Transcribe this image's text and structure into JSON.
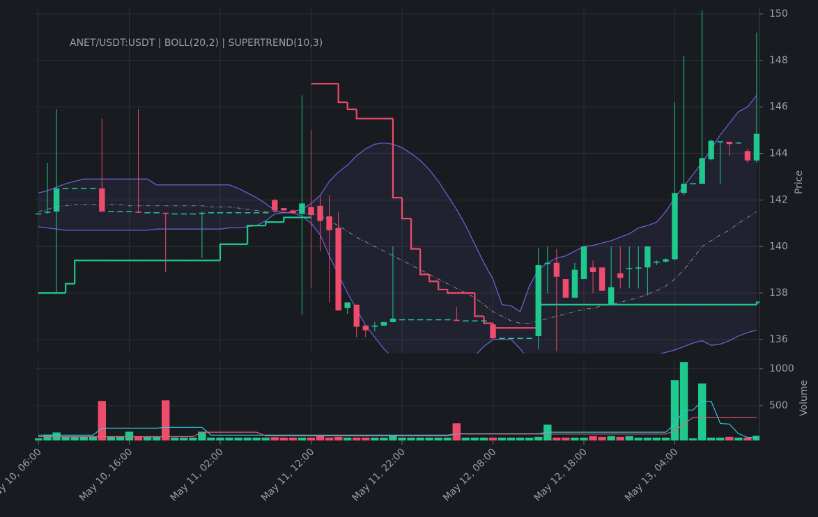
{
  "chart_data": {
    "type": "candlestick",
    "title": "ANET/USDT:USDT | BOLL(20,2) | SUPERTREND(10,3)",
    "ylabel": "Price",
    "volume_label": "Volume",
    "categories": [
      "May 10, 06:00",
      null,
      null,
      null,
      null,
      null,
      null,
      null,
      null,
      null,
      "May 10, 16:00",
      null,
      null,
      null,
      null,
      null,
      null,
      null,
      null,
      null,
      "May 11, 02:00",
      null,
      null,
      null,
      null,
      null,
      null,
      null,
      null,
      null,
      "May 11, 12:00",
      null,
      null,
      null,
      null,
      null,
      null,
      null,
      null,
      null,
      "May 11, 22:00",
      null,
      null,
      null,
      null,
      null,
      null,
      null,
      null,
      null,
      "May 12, 08:00",
      null,
      null,
      null,
      null,
      null,
      null,
      null,
      null,
      null,
      "May 12, 18:00",
      null,
      null,
      null,
      null,
      null,
      null,
      null,
      null,
      null,
      "May 13, 04:00",
      null,
      null,
      null,
      null,
      null,
      null,
      null,
      null,
      null
    ],
    "open": [
      141.4,
      141.45,
      141.5,
      142.5,
      142.5,
      142.5,
      142.5,
      142.5,
      141.5,
      141.5,
      141.5,
      141.5,
      141.45,
      141.45,
      141.45,
      141.4,
      141.4,
      141.4,
      141.4,
      141.45,
      141.45,
      141.45,
      141.45,
      141.45,
      141.45,
      141.45,
      142.0,
      141.65,
      141.55,
      141.4,
      141.7,
      141.75,
      141.3,
      140.8,
      137.35,
      137.5,
      136.6,
      136.55,
      136.6,
      136.75,
      136.85,
      136.85,
      136.85,
      136.85,
      136.85,
      136.85,
      136.85,
      136.8,
      136.8,
      136.8,
      136.65,
      136.05,
      136.05,
      136.05,
      136.05,
      136.15,
      139.25,
      139.3,
      138.6,
      137.8,
      138.6,
      139.1,
      139.1,
      137.5,
      138.85,
      139.05,
      139.05,
      139.1,
      139.3,
      139.35,
      139.45,
      142.3,
      142.7,
      142.7,
      143.75,
      144.5,
      144.5,
      144.45,
      144.1,
      143.7
    ],
    "high": [
      141.4,
      143.6,
      145.9,
      142.5,
      142.5,
      142.5,
      142.5,
      145.5,
      141.5,
      141.5,
      141.5,
      145.9,
      141.45,
      141.45,
      141.45,
      141.4,
      141.4,
      141.4,
      141.5,
      141.45,
      141.45,
      141.45,
      141.45,
      141.45,
      141.45,
      141.45,
      142.05,
      141.65,
      141.6,
      146.5,
      145.0,
      142.2,
      142.2,
      141.5,
      137.6,
      137.5,
      136.6,
      136.75,
      136.75,
      140.0,
      136.85,
      136.85,
      136.85,
      136.85,
      136.85,
      136.85,
      137.4,
      136.8,
      136.8,
      136.8,
      136.65,
      136.05,
      136.05,
      136.05,
      136.05,
      139.95,
      140.0,
      139.9,
      138.6,
      139.3,
      140.0,
      139.4,
      139.1,
      140.0,
      140.0,
      140.0,
      140.0,
      140.0,
      139.4,
      139.5,
      146.2,
      148.2,
      142.7,
      150.15,
      144.6,
      144.5,
      144.5,
      144.5,
      144.2,
      149.2
    ],
    "low": [
      141.4,
      141.4,
      138.0,
      142.5,
      142.5,
      142.5,
      142.5,
      141.5,
      141.5,
      141.5,
      141.5,
      141.45,
      141.45,
      141.45,
      138.9,
      141.4,
      141.4,
      141.4,
      139.5,
      141.45,
      141.45,
      141.45,
      141.45,
      141.45,
      141.45,
      141.45,
      141.5,
      141.5,
      141.4,
      137.05,
      138.2,
      139.8,
      137.6,
      137.25,
      137.1,
      136.1,
      136.1,
      136.35,
      136.6,
      136.75,
      136.85,
      136.85,
      136.85,
      136.85,
      136.85,
      136.85,
      136.8,
      136.8,
      136.8,
      136.8,
      136.05,
      136.05,
      136.05,
      136.05,
      136.05,
      135.6,
      138.0,
      135.5,
      137.8,
      137.8,
      138.6,
      138.0,
      138.1,
      137.5,
      138.2,
      138.2,
      138.2,
      137.9,
      139.2,
      139.3,
      139.4,
      142.2,
      142.7,
      142.7,
      143.7,
      142.7,
      143.9,
      144.4,
      143.6,
      143.6
    ],
    "close": [
      141.4,
      141.5,
      142.5,
      142.5,
      142.5,
      142.5,
      142.5,
      141.5,
      141.5,
      141.5,
      141.5,
      141.45,
      141.45,
      141.45,
      141.4,
      141.4,
      141.4,
      141.4,
      141.45,
      141.45,
      141.45,
      141.45,
      141.45,
      141.45,
      141.45,
      141.45,
      141.55,
      141.55,
      141.45,
      141.85,
      141.35,
      141.1,
      140.7,
      137.25,
      137.6,
      136.55,
      136.4,
      136.6,
      136.75,
      136.9,
      136.85,
      136.85,
      136.85,
      136.85,
      136.85,
      136.85,
      136.8,
      136.8,
      136.8,
      136.8,
      136.05,
      136.05,
      136.05,
      136.05,
      136.05,
      139.2,
      139.3,
      138.7,
      137.8,
      139.0,
      140.0,
      138.9,
      138.1,
      138.25,
      138.65,
      139.05,
      139.1,
      140.0,
      139.35,
      139.45,
      142.3,
      142.7,
      142.7,
      143.8,
      144.55,
      144.5,
      144.4,
      144.45,
      143.7,
      144.85
    ],
    "volume": [
      60,
      110,
      140,
      80,
      80,
      80,
      80,
      566,
      80,
      80,
      150,
      80,
      80,
      80,
      575,
      70,
      70,
      70,
      150,
      70,
      70,
      70,
      70,
      70,
      70,
      70,
      75,
      70,
      70,
      70,
      70,
      100,
      70,
      80,
      70,
      70,
      70,
      70,
      70,
      90,
      70,
      70,
      70,
      70,
      70,
      70,
      264,
      70,
      70,
      70,
      70,
      70,
      70,
      70,
      70,
      80,
      245,
      70,
      70,
      70,
      70,
      90,
      80,
      90,
      80,
      90,
      70,
      70,
      70,
      70,
      849,
      1094,
      60,
      802,
      70,
      70,
      80,
      70,
      70,
      95
    ],
    "volume_ma": [
      100,
      100,
      100,
      100,
      100,
      100,
      100,
      195,
      195,
      195,
      195,
      195,
      195,
      195,
      205,
      205,
      205,
      205,
      205,
      100,
      100,
      100,
      100,
      100,
      100,
      100,
      100,
      100,
      100,
      100,
      100,
      100,
      100,
      100,
      100,
      100,
      100,
      100,
      100,
      100,
      100,
      100,
      100,
      100,
      100,
      100,
      120,
      120,
      120,
      120,
      120,
      120,
      120,
      120,
      120,
      120,
      140,
      140,
      140,
      140,
      140,
      140,
      140,
      140,
      140,
      140,
      140,
      140,
      140,
      140,
      250,
      440,
      440,
      560,
      560,
      260,
      250,
      120,
      70,
      70
    ],
    "volume_ma_long": [
      80,
      80,
      80,
      80,
      80,
      80,
      80,
      80,
      80,
      80,
      80,
      80,
      80,
      80,
      80,
      80,
      80,
      80,
      140,
      140,
      140,
      140,
      140,
      140,
      140,
      90,
      90,
      90,
      90,
      90,
      90,
      90,
      90,
      90,
      90,
      90,
      90,
      90,
      90,
      90,
      90,
      90,
      90,
      90,
      90,
      90,
      115,
      115,
      115,
      115,
      115,
      115,
      115,
      115,
      115,
      115,
      115,
      115,
      115,
      115,
      115,
      115,
      115,
      115,
      115,
      115,
      115,
      115,
      115,
      115,
      160,
      250,
      340,
      340,
      340,
      340,
      340,
      340,
      340,
      340
    ],
    "bb_upper": [
      142.3,
      142.4,
      142.55,
      142.7,
      142.8,
      142.9,
      142.9,
      142.9,
      142.9,
      142.9,
      142.9,
      142.9,
      142.9,
      142.65,
      142.65,
      142.65,
      142.65,
      142.65,
      142.65,
      142.65,
      142.65,
      142.65,
      142.5,
      142.3,
      142.1,
      141.85,
      141.55,
      141.45,
      141.5,
      141.6,
      141.85,
      142.2,
      142.8,
      143.2,
      143.5,
      143.9,
      144.2,
      144.4,
      144.45,
      144.4,
      144.25,
      144.0,
      143.7,
      143.3,
      142.8,
      142.2,
      141.6,
      140.9,
      140.1,
      139.3,
      138.6,
      137.5,
      137.45,
      137.2,
      138.3,
      139.0,
      139.3,
      139.5,
      139.6,
      139.8,
      140.0,
      140.05,
      140.15,
      140.25,
      140.4,
      140.55,
      140.8,
      140.9,
      141.05,
      141.5,
      142.1,
      142.6,
      143.1,
      143.6,
      144.2,
      144.8,
      145.3,
      145.8,
      146.0,
      146.5
    ],
    "bb_middle": [
      141.5,
      141.6,
      141.7,
      141.75,
      141.8,
      141.8,
      141.8,
      141.8,
      141.8,
      141.8,
      141.75,
      141.75,
      141.75,
      141.75,
      141.75,
      141.75,
      141.75,
      141.75,
      141.75,
      141.7,
      141.7,
      141.7,
      141.65,
      141.6,
      141.55,
      141.5,
      141.5,
      141.45,
      141.45,
      141.45,
      141.4,
      141.35,
      141.1,
      140.9,
      140.65,
      140.4,
      140.2,
      140.0,
      139.8,
      139.6,
      139.4,
      139.2,
      139.0,
      138.8,
      138.6,
      138.4,
      138.2,
      138.0,
      137.8,
      137.5,
      137.2,
      137.0,
      136.8,
      136.7,
      136.7,
      136.8,
      136.9,
      137.0,
      137.1,
      137.2,
      137.3,
      137.35,
      137.45,
      137.5,
      137.6,
      137.7,
      137.8,
      137.95,
      138.1,
      138.3,
      138.6,
      139.0,
      139.5,
      140.0,
      140.25,
      140.5,
      140.7,
      141.0,
      141.25,
      141.5
    ],
    "bb_lower": [
      140.85,
      140.8,
      140.75,
      140.7,
      140.7,
      140.7,
      140.7,
      140.7,
      140.7,
      140.7,
      140.7,
      140.7,
      140.7,
      140.75,
      140.75,
      140.75,
      140.75,
      140.75,
      140.75,
      140.75,
      140.75,
      140.8,
      140.8,
      140.85,
      140.9,
      141.1,
      141.4,
      141.45,
      141.45,
      141.3,
      141.0,
      140.5,
      139.6,
      138.8,
      138.0,
      137.3,
      136.6,
      136.1,
      135.6,
      135.2,
      134.8,
      134.5,
      134.3,
      134.3,
      134.4,
      134.6,
      134.8,
      135.0,
      135.3,
      135.7,
      136.0,
      136.0,
      136.0,
      135.6,
      135.1,
      134.6,
      134.4,
      134.4,
      134.5,
      134.6,
      134.7,
      134.8,
      134.9,
      135.0,
      135.1,
      135.2,
      135.3,
      135.35,
      135.35,
      135.45,
      135.55,
      135.7,
      135.85,
      135.95,
      135.75,
      135.8,
      135.95,
      136.15,
      136.3,
      136.4
    ],
    "supertrend_up": [
      138.0,
      138.0,
      138.0,
      138.4,
      139.4,
      139.4,
      139.4,
      139.4,
      139.4,
      139.4,
      139.4,
      139.4,
      139.4,
      139.4,
      139.4,
      139.4,
      139.4,
      139.4,
      139.4,
      139.4,
      140.1,
      140.1,
      140.1,
      140.9,
      140.9,
      141.05,
      141.05,
      141.25,
      141.25,
      141.25,
      null,
      null,
      null,
      null,
      null,
      null,
      null,
      null,
      null,
      null,
      null,
      null,
      null,
      null,
      null,
      null,
      null,
      null,
      null,
      null,
      null,
      null,
      null,
      null,
      null,
      137.5,
      137.5,
      137.5,
      137.5,
      137.5,
      137.5,
      137.5,
      137.5,
      137.5,
      137.5,
      137.5,
      137.5,
      137.5,
      137.5,
      137.5,
      137.5,
      137.5,
      137.5,
      137.5,
      137.5,
      137.5,
      137.5,
      137.5,
      137.5,
      137.6
    ],
    "supertrend_down": [
      null,
      null,
      null,
      null,
      null,
      null,
      null,
      null,
      null,
      null,
      null,
      null,
      null,
      null,
      null,
      null,
      null,
      null,
      null,
      null,
      null,
      null,
      null,
      null,
      null,
      null,
      null,
      null,
      null,
      null,
      147.0,
      147.0,
      147.0,
      146.2,
      145.9,
      145.5,
      145.5,
      145.5,
      145.5,
      142.1,
      141.2,
      139.9,
      138.8,
      138.5,
      138.15,
      138.0,
      138.0,
      138.0,
      137.0,
      136.7,
      136.5,
      136.5,
      136.5,
      136.5,
      136.5,
      null,
      null,
      null,
      null,
      null,
      null,
      null,
      null,
      null,
      null,
      null,
      null,
      null,
      null,
      null,
      null,
      null,
      null,
      null,
      null,
      null,
      null,
      null,
      null,
      null
    ],
    "ylim": [
      135.4,
      150.3
    ],
    "yticks": [
      136,
      138,
      140,
      142,
      144,
      146,
      148,
      150
    ],
    "volume_ylim": [
      0,
      1150
    ],
    "volume_yticks": [
      500,
      1000
    ],
    "grid": true,
    "colors": {
      "up": "#1fc98e",
      "down": "#ef4b6c",
      "bb": "#6b5fd0",
      "bb_fill": "rgba(110,100,210,0.10)",
      "bb_middle": "#8a8d93",
      "supertrend_up": "#1fc98e",
      "supertrend_down": "#ef4b6c",
      "volume_ma": "#2ec8d8",
      "volume_ma_long": "#e0607e"
    }
  }
}
